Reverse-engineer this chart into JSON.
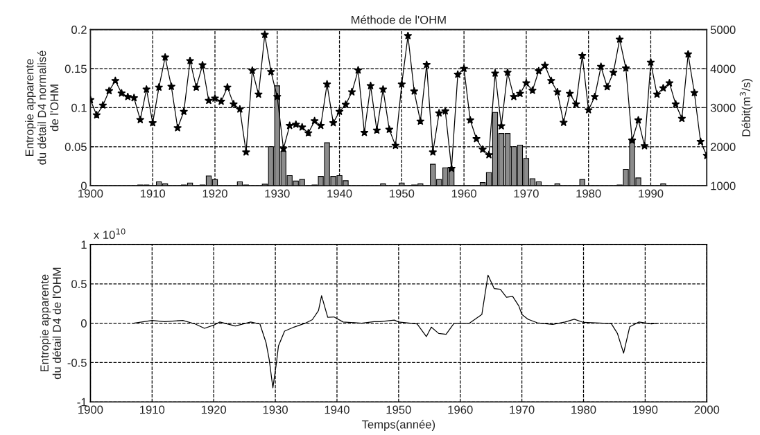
{
  "chart_data": [
    {
      "type": "bar",
      "title": "Méthode de l'OHM",
      "ylabel": "Entropie apparente\ndu détail D4 normalisé\nde l'OHM",
      "y2label": "Débit(m$^{3}$/s)",
      "x": [
        1908,
        1909,
        1911,
        1912,
        1915,
        1916,
        1918,
        1919,
        1920,
        1924,
        1925,
        1928,
        1929,
        1930,
        1931,
        1932,
        1933,
        1934,
        1936,
        1937,
        1938,
        1939,
        1940,
        1941,
        1947,
        1950,
        1952,
        1953,
        1955,
        1956,
        1957,
        1958,
        1963,
        1964,
        1965,
        1966,
        1967,
        1968,
        1969,
        1970,
        1971,
        1972,
        1975,
        1979,
        1985,
        1986,
        1987,
        1988,
        1992
      ],
      "series": [
        {
          "type": "bar",
          "color": "#8c8c8c",
          "values": [
            0.001,
            0.001,
            0.005,
            0.0025,
            0.001,
            0.0035,
            0.001,
            0.0125,
            0.008,
            0.005,
            0.001,
            0.002,
            0.05,
            0.128,
            0.044,
            0.013,
            0.006,
            0.008,
            0.001,
            0.012,
            0.055,
            0.012,
            0.013,
            0.0065,
            0.0025,
            0.0035,
            0.001,
            0.0025,
            0.0275,
            0.008,
            0.023,
            0.0215,
            0.004,
            0.017,
            0.094,
            0.067,
            0.067,
            0.05,
            0.052,
            0.035,
            0.009,
            0.005,
            0.0025,
            0.008,
            0.001,
            0.021,
            0.06,
            0.01,
            0.0025
          ]
        },
        {
          "type": "line",
          "axis": "y2",
          "color": "#000000",
          "marker": "star",
          "x": [
            1900,
            1901,
            1902,
            1903,
            1904,
            1905,
            1906,
            1907,
            1908,
            1909,
            1910,
            1911,
            1912,
            1913,
            1914,
            1915,
            1916,
            1917,
            1918,
            1919,
            1920,
            1921,
            1922,
            1923,
            1924,
            1925,
            1926,
            1927,
            1928,
            1929,
            1930,
            1931,
            1932,
            1933,
            1934,
            1935,
            1936,
            1937,
            1938,
            1939,
            1940,
            1941,
            1942,
            1943,
            1944,
            1945,
            1946,
            1947,
            1948,
            1949,
            1950,
            1951,
            1952,
            1953,
            1954,
            1955,
            1956,
            1957,
            1958,
            1959,
            1960,
            1961,
            1962,
            1963,
            1964,
            1965,
            1966,
            1967,
            1968,
            1969,
            1970,
            1971,
            1972,
            1973,
            1974,
            1975,
            1976,
            1977,
            1978,
            1979,
            1980,
            1981,
            1982,
            1983,
            1984,
            1985,
            1986,
            1987,
            1988,
            1989,
            1990,
            1991,
            1992,
            1993,
            1994,
            1995,
            1996,
            1997,
            1998,
            1999
          ],
          "values": [
            3200,
            2810,
            3060,
            3430,
            3690,
            3370,
            3280,
            3250,
            2690,
            3470,
            2610,
            3520,
            4290,
            3540,
            2480,
            2900,
            4200,
            3520,
            4090,
            3180,
            3240,
            3160,
            3520,
            3090,
            2960,
            1860,
            3950,
            3340,
            4870,
            3920,
            3280,
            1950,
            2540,
            2570,
            2500,
            2350,
            2660,
            2540,
            3600,
            2610,
            2900,
            3080,
            3400,
            3960,
            2360,
            3560,
            2420,
            3470,
            2440,
            2030,
            3600,
            4840,
            3420,
            2650,
            4100,
            1860,
            2860,
            2910,
            1440,
            3850,
            4000,
            2680,
            2200,
            1930,
            1790,
            3880,
            2530,
            3900,
            3280,
            3360,
            3630,
            3440,
            3940,
            4080,
            3690,
            3400,
            2620,
            3360,
            3090,
            4330,
            2940,
            3280,
            4050,
            3530,
            3900,
            4750,
            4010,
            2160,
            2680,
            2020,
            4160,
            3340,
            3500,
            3630,
            3090,
            2720,
            4370,
            3380,
            2130,
            1770
          ]
        }
      ],
      "xlim": [
        1900,
        1999
      ],
      "xticks": [
        1900,
        1910,
        1920,
        1930,
        1940,
        1950,
        1960,
        1970,
        1980,
        1990
      ],
      "ylim": [
        0,
        0.2
      ],
      "yticks": [
        0,
        0.05,
        0.1,
        0.15,
        0.2
      ],
      "y2lim": [
        1000,
        5000
      ],
      "y2ticks": [
        1000,
        2000,
        3000,
        4000,
        5000
      ],
      "grid": true
    },
    {
      "type": "line",
      "ylabel": "Entropie apparente\ndu détail D4 de l'OHM",
      "xlabel": "Temps(année)",
      "annotations": [
        "x 10$^{10}$"
      ],
      "series": [
        {
          "color": "#000000",
          "x": [
            1907,
            1910,
            1912,
            1915,
            1917,
            1918.5,
            1920,
            1921,
            1923.5,
            1926,
            1927.5,
            1928.5,
            1929,
            1929.6,
            1930.2,
            1930.5,
            1931.5,
            1933,
            1935,
            1936,
            1937,
            1937.5,
            1938.5,
            1939.5,
            1941,
            1944,
            1946,
            1947,
            1949.3,
            1950,
            1953,
            1954.5,
            1955.3,
            1956.5,
            1957.7,
            1959,
            1961.5,
            1963.5,
            1964.5,
            1965.5,
            1966.5,
            1967.5,
            1968.5,
            1969.5,
            1970,
            1971,
            1972.5,
            1975,
            1977,
            1978.5,
            1980,
            1984.5,
            1985.5,
            1986.5,
            1987.5,
            1989,
            1991,
            1992
          ],
          "values": [
            0,
            0.035,
            0.02,
            0.035,
            -0.01,
            -0.065,
            -0.025,
            0.015,
            -0.035,
            0.015,
            -0.01,
            -0.25,
            -0.46,
            -0.82,
            -0.49,
            -0.29,
            -0.1,
            -0.05,
            0.005,
            0.045,
            0.16,
            0.35,
            0.075,
            0.08,
            0.015,
            0,
            0.02,
            0.02,
            0.04,
            0.015,
            -0.01,
            -0.17,
            -0.05,
            -0.13,
            -0.14,
            0,
            0,
            0.11,
            0.61,
            0.44,
            0.43,
            0.33,
            0.34,
            0.22,
            0.11,
            0.05,
            0.005,
            -0.015,
            0.015,
            0.05,
            0.01,
            -0.005,
            -0.13,
            -0.38,
            -0.045,
            0.015,
            -0.01,
            0
          ]
        }
      ],
      "xlim": [
        1900,
        2000
      ],
      "xticks": [
        1900,
        1910,
        1920,
        1930,
        1940,
        1950,
        1960,
        1970,
        1980,
        1990,
        2000
      ],
      "ylim": [
        -1,
        1
      ],
      "yticks": [
        -1,
        -0.5,
        0,
        0.5,
        1
      ],
      "grid": true
    }
  ]
}
